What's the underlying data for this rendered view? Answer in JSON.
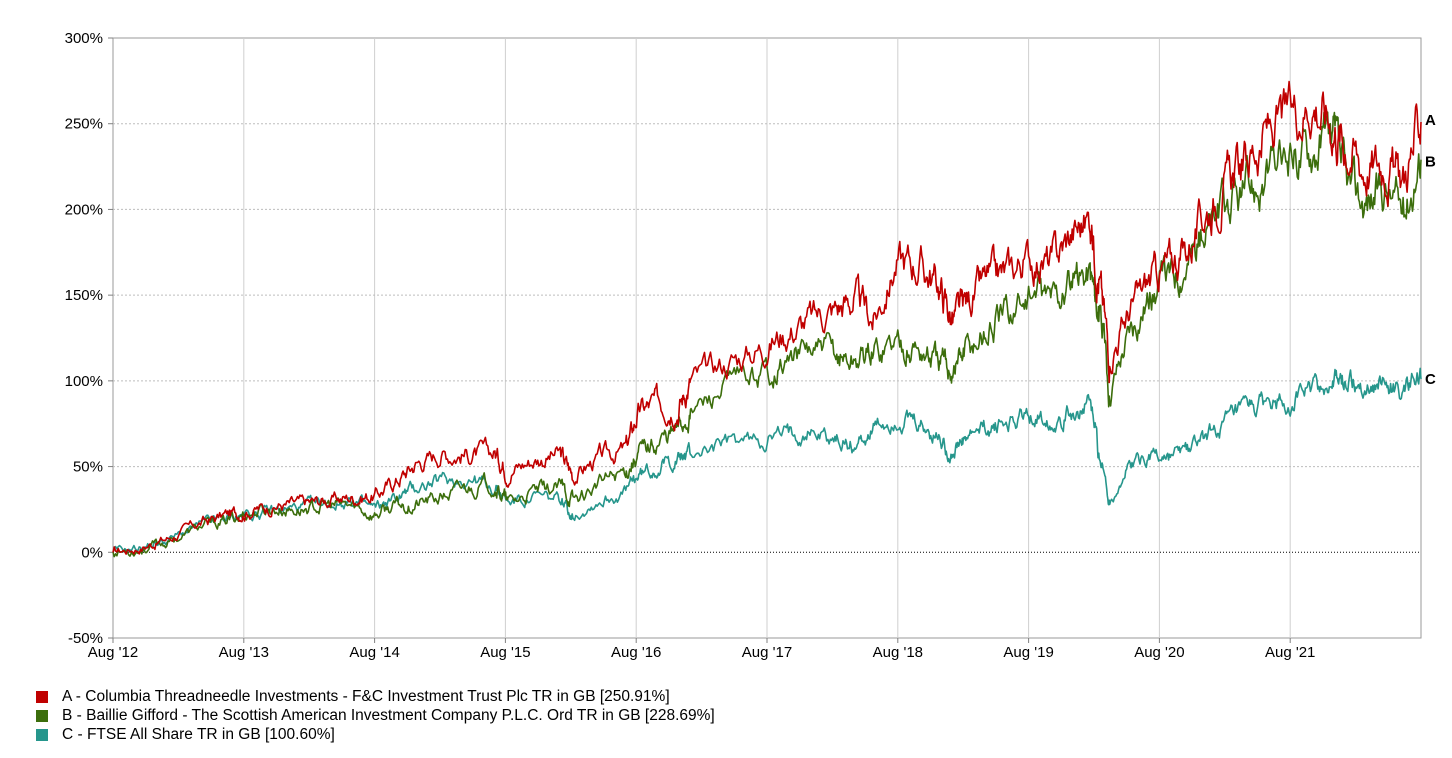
{
  "chart_data": {
    "type": "line",
    "title": "",
    "xlabel": "",
    "ylabel": "",
    "x_ticks": [
      "Aug '12",
      "Aug '13",
      "Aug '14",
      "Aug '15",
      "Aug '16",
      "Aug '17",
      "Aug '18",
      "Aug '19",
      "Aug '20",
      "Aug '21"
    ],
    "y_ticks": [
      "300%",
      "250%",
      "200%",
      "150%",
      "100%",
      "50%",
      "0%",
      "-50%"
    ],
    "ylim": [
      -50,
      300
    ],
    "xlim": [
      2012.58,
      2022.58
    ],
    "grid": true,
    "legend_position": "bottom-left",
    "series": [
      {
        "key": "A",
        "name": "A - Columbia Threadneedle Investments - F&C Investment Trust Plc TR in GB [250.91%]",
        "end_label": "A",
        "color": "#c00000",
        "points": [
          [
            2012.58,
            0
          ],
          [
            2012.8,
            3
          ],
          [
            2013.0,
            8
          ],
          [
            2013.25,
            17
          ],
          [
            2013.45,
            22
          ],
          [
            2013.6,
            24
          ],
          [
            2013.8,
            27
          ],
          [
            2014.0,
            28
          ],
          [
            2014.2,
            30
          ],
          [
            2014.4,
            32
          ],
          [
            2014.58,
            33
          ],
          [
            2014.75,
            42
          ],
          [
            2014.9,
            52
          ],
          [
            2015.1,
            58
          ],
          [
            2015.3,
            57
          ],
          [
            2015.5,
            58
          ],
          [
            2015.6,
            48
          ],
          [
            2015.8,
            54
          ],
          [
            2016.0,
            57
          ],
          [
            2016.1,
            45
          ],
          [
            2016.3,
            55
          ],
          [
            2016.5,
            60
          ],
          [
            2016.6,
            82
          ],
          [
            2016.75,
            88
          ],
          [
            2016.9,
            85
          ],
          [
            2017.0,
            100
          ],
          [
            2017.25,
            110
          ],
          [
            2017.5,
            118
          ],
          [
            2017.7,
            127
          ],
          [
            2017.9,
            135
          ],
          [
            2018.1,
            142
          ],
          [
            2018.25,
            148
          ],
          [
            2018.4,
            135
          ],
          [
            2018.58,
            170
          ],
          [
            2018.75,
            168
          ],
          [
            2018.9,
            155
          ],
          [
            2019.0,
            135
          ],
          [
            2019.1,
            145
          ],
          [
            2019.25,
            158
          ],
          [
            2019.4,
            162
          ],
          [
            2019.58,
            172
          ],
          [
            2019.75,
            168
          ],
          [
            2019.9,
            185
          ],
          [
            2020.05,
            195
          ],
          [
            2020.12,
            160
          ],
          [
            2020.2,
            115
          ],
          [
            2020.35,
            140
          ],
          [
            2020.5,
            158
          ],
          [
            2020.65,
            168
          ],
          [
            2020.8,
            178
          ],
          [
            2020.95,
            200
          ],
          [
            2021.1,
            215
          ],
          [
            2021.25,
            230
          ],
          [
            2021.4,
            245
          ],
          [
            2021.58,
            255
          ],
          [
            2021.75,
            265
          ],
          [
            2021.9,
            250
          ],
          [
            2022.0,
            240
          ],
          [
            2022.15,
            225
          ],
          [
            2022.3,
            228
          ],
          [
            2022.45,
            218
          ],
          [
            2022.58,
            251
          ]
        ]
      },
      {
        "key": "B",
        "name": "B - Baillie Gifford - The Scottish American Investment Company P.L.C. Ord TR in GB [228.69%]",
        "end_label": "B",
        "color": "#3c6e0c",
        "points": [
          [
            2012.58,
            0
          ],
          [
            2012.8,
            2
          ],
          [
            2013.0,
            6
          ],
          [
            2013.25,
            15
          ],
          [
            2013.45,
            18
          ],
          [
            2013.6,
            23
          ],
          [
            2013.8,
            25
          ],
          [
            2014.0,
            25
          ],
          [
            2014.2,
            27
          ],
          [
            2014.4,
            27
          ],
          [
            2014.58,
            22
          ],
          [
            2014.75,
            27
          ],
          [
            2014.9,
            28
          ],
          [
            2015.1,
            32
          ],
          [
            2015.3,
            38
          ],
          [
            2015.5,
            40
          ],
          [
            2015.6,
            28
          ],
          [
            2015.8,
            35
          ],
          [
            2016.0,
            38
          ],
          [
            2016.1,
            30
          ],
          [
            2016.3,
            40
          ],
          [
            2016.5,
            48
          ],
          [
            2016.6,
            58
          ],
          [
            2016.75,
            65
          ],
          [
            2016.9,
            72
          ],
          [
            2017.0,
            82
          ],
          [
            2017.25,
            95
          ],
          [
            2017.5,
            103
          ],
          [
            2017.7,
            110
          ],
          [
            2017.9,
            118
          ],
          [
            2018.1,
            115
          ],
          [
            2018.25,
            112
          ],
          [
            2018.4,
            118
          ],
          [
            2018.58,
            124
          ],
          [
            2018.75,
            118
          ],
          [
            2018.9,
            110
          ],
          [
            2019.0,
            108
          ],
          [
            2019.1,
            118
          ],
          [
            2019.25,
            128
          ],
          [
            2019.4,
            138
          ],
          [
            2019.58,
            150
          ],
          [
            2019.75,
            148
          ],
          [
            2019.9,
            155
          ],
          [
            2020.05,
            165
          ],
          [
            2020.12,
            140
          ],
          [
            2020.2,
            95
          ],
          [
            2020.35,
            130
          ],
          [
            2020.5,
            150
          ],
          [
            2020.65,
            160
          ],
          [
            2020.8,
            172
          ],
          [
            2020.95,
            190
          ],
          [
            2021.1,
            200
          ],
          [
            2021.25,
            210
          ],
          [
            2021.4,
            218
          ],
          [
            2021.58,
            232
          ],
          [
            2021.75,
            238
          ],
          [
            2021.9,
            245
          ],
          [
            2022.0,
            215
          ],
          [
            2022.15,
            205
          ],
          [
            2022.3,
            212
          ],
          [
            2022.45,
            200
          ],
          [
            2022.58,
            229
          ]
        ]
      },
      {
        "key": "C",
        "name": "C - FTSE All Share TR in GB [100.60%]",
        "end_label": "C",
        "color": "#26968c",
        "points": [
          [
            2012.58,
            0
          ],
          [
            2012.8,
            3
          ],
          [
            2013.0,
            7
          ],
          [
            2013.25,
            16
          ],
          [
            2013.45,
            20
          ],
          [
            2013.6,
            22
          ],
          [
            2013.8,
            24
          ],
          [
            2014.0,
            26
          ],
          [
            2014.2,
            28
          ],
          [
            2014.4,
            30
          ],
          [
            2014.58,
            25
          ],
          [
            2014.75,
            32
          ],
          [
            2014.9,
            38
          ],
          [
            2015.1,
            42
          ],
          [
            2015.3,
            43
          ],
          [
            2015.5,
            38
          ],
          [
            2015.6,
            30
          ],
          [
            2015.8,
            32
          ],
          [
            2016.0,
            30
          ],
          [
            2016.1,
            22
          ],
          [
            2016.3,
            30
          ],
          [
            2016.5,
            35
          ],
          [
            2016.6,
            45
          ],
          [
            2016.75,
            50
          ],
          [
            2016.9,
            55
          ],
          [
            2017.0,
            58
          ],
          [
            2017.25,
            63
          ],
          [
            2017.5,
            66
          ],
          [
            2017.7,
            68
          ],
          [
            2017.9,
            72
          ],
          [
            2018.1,
            66
          ],
          [
            2018.25,
            62
          ],
          [
            2018.4,
            72
          ],
          [
            2018.58,
            78
          ],
          [
            2018.75,
            72
          ],
          [
            2018.9,
            66
          ],
          [
            2019.0,
            58
          ],
          [
            2019.1,
            65
          ],
          [
            2019.25,
            72
          ],
          [
            2019.4,
            75
          ],
          [
            2019.58,
            80
          ],
          [
            2019.75,
            78
          ],
          [
            2019.9,
            82
          ],
          [
            2020.05,
            86
          ],
          [
            2020.12,
            58
          ],
          [
            2020.2,
            30
          ],
          [
            2020.35,
            50
          ],
          [
            2020.5,
            58
          ],
          [
            2020.65,
            55
          ],
          [
            2020.8,
            60
          ],
          [
            2020.95,
            68
          ],
          [
            2021.1,
            75
          ],
          [
            2021.25,
            82
          ],
          [
            2021.4,
            86
          ],
          [
            2021.58,
            90
          ],
          [
            2021.75,
            95
          ],
          [
            2021.9,
            98
          ],
          [
            2022.0,
            100
          ],
          [
            2022.15,
            97
          ],
          [
            2022.3,
            100
          ],
          [
            2022.45,
            94
          ],
          [
            2022.58,
            101
          ]
        ]
      }
    ]
  }
}
